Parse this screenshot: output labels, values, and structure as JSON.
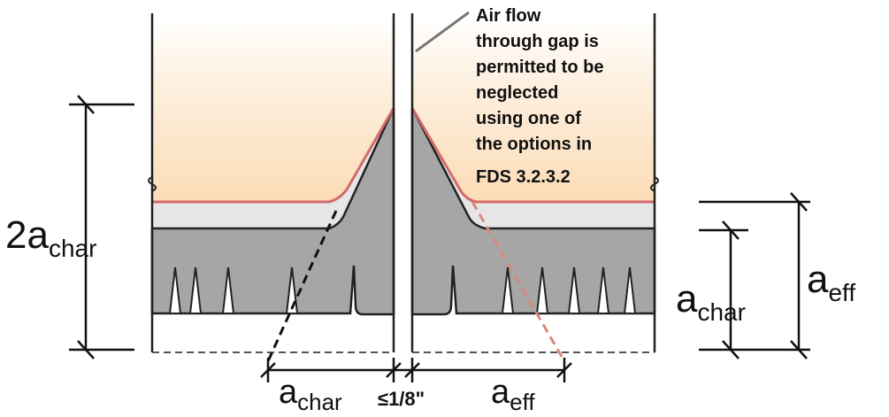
{
  "diagram": {
    "left_height_label": {
      "main": "2a",
      "sub": "char"
    },
    "right_inner_label": {
      "main": "a",
      "sub": "char"
    },
    "right_outer_label": {
      "main": "a",
      "sub": "eff"
    },
    "bottom_left_label": {
      "main": "a",
      "sub": "char"
    },
    "bottom_gap_label": "≤1/8\"",
    "bottom_right_label": {
      "main": "a",
      "sub": "eff"
    },
    "note_lines": [
      "Air flow",
      "through gap is",
      "permitted to be",
      "neglected",
      "using one of",
      "the options in",
      "FDS 3.2.3.2"
    ],
    "colors": {
      "fire_zone": "#fde3c6",
      "char_line": "#d46a6a",
      "pyrolysis_zone": "#e6e6e6",
      "residual_section": "#a6a6a6",
      "outline": "#222222",
      "dashed_eff": "#d9897a"
    }
  }
}
